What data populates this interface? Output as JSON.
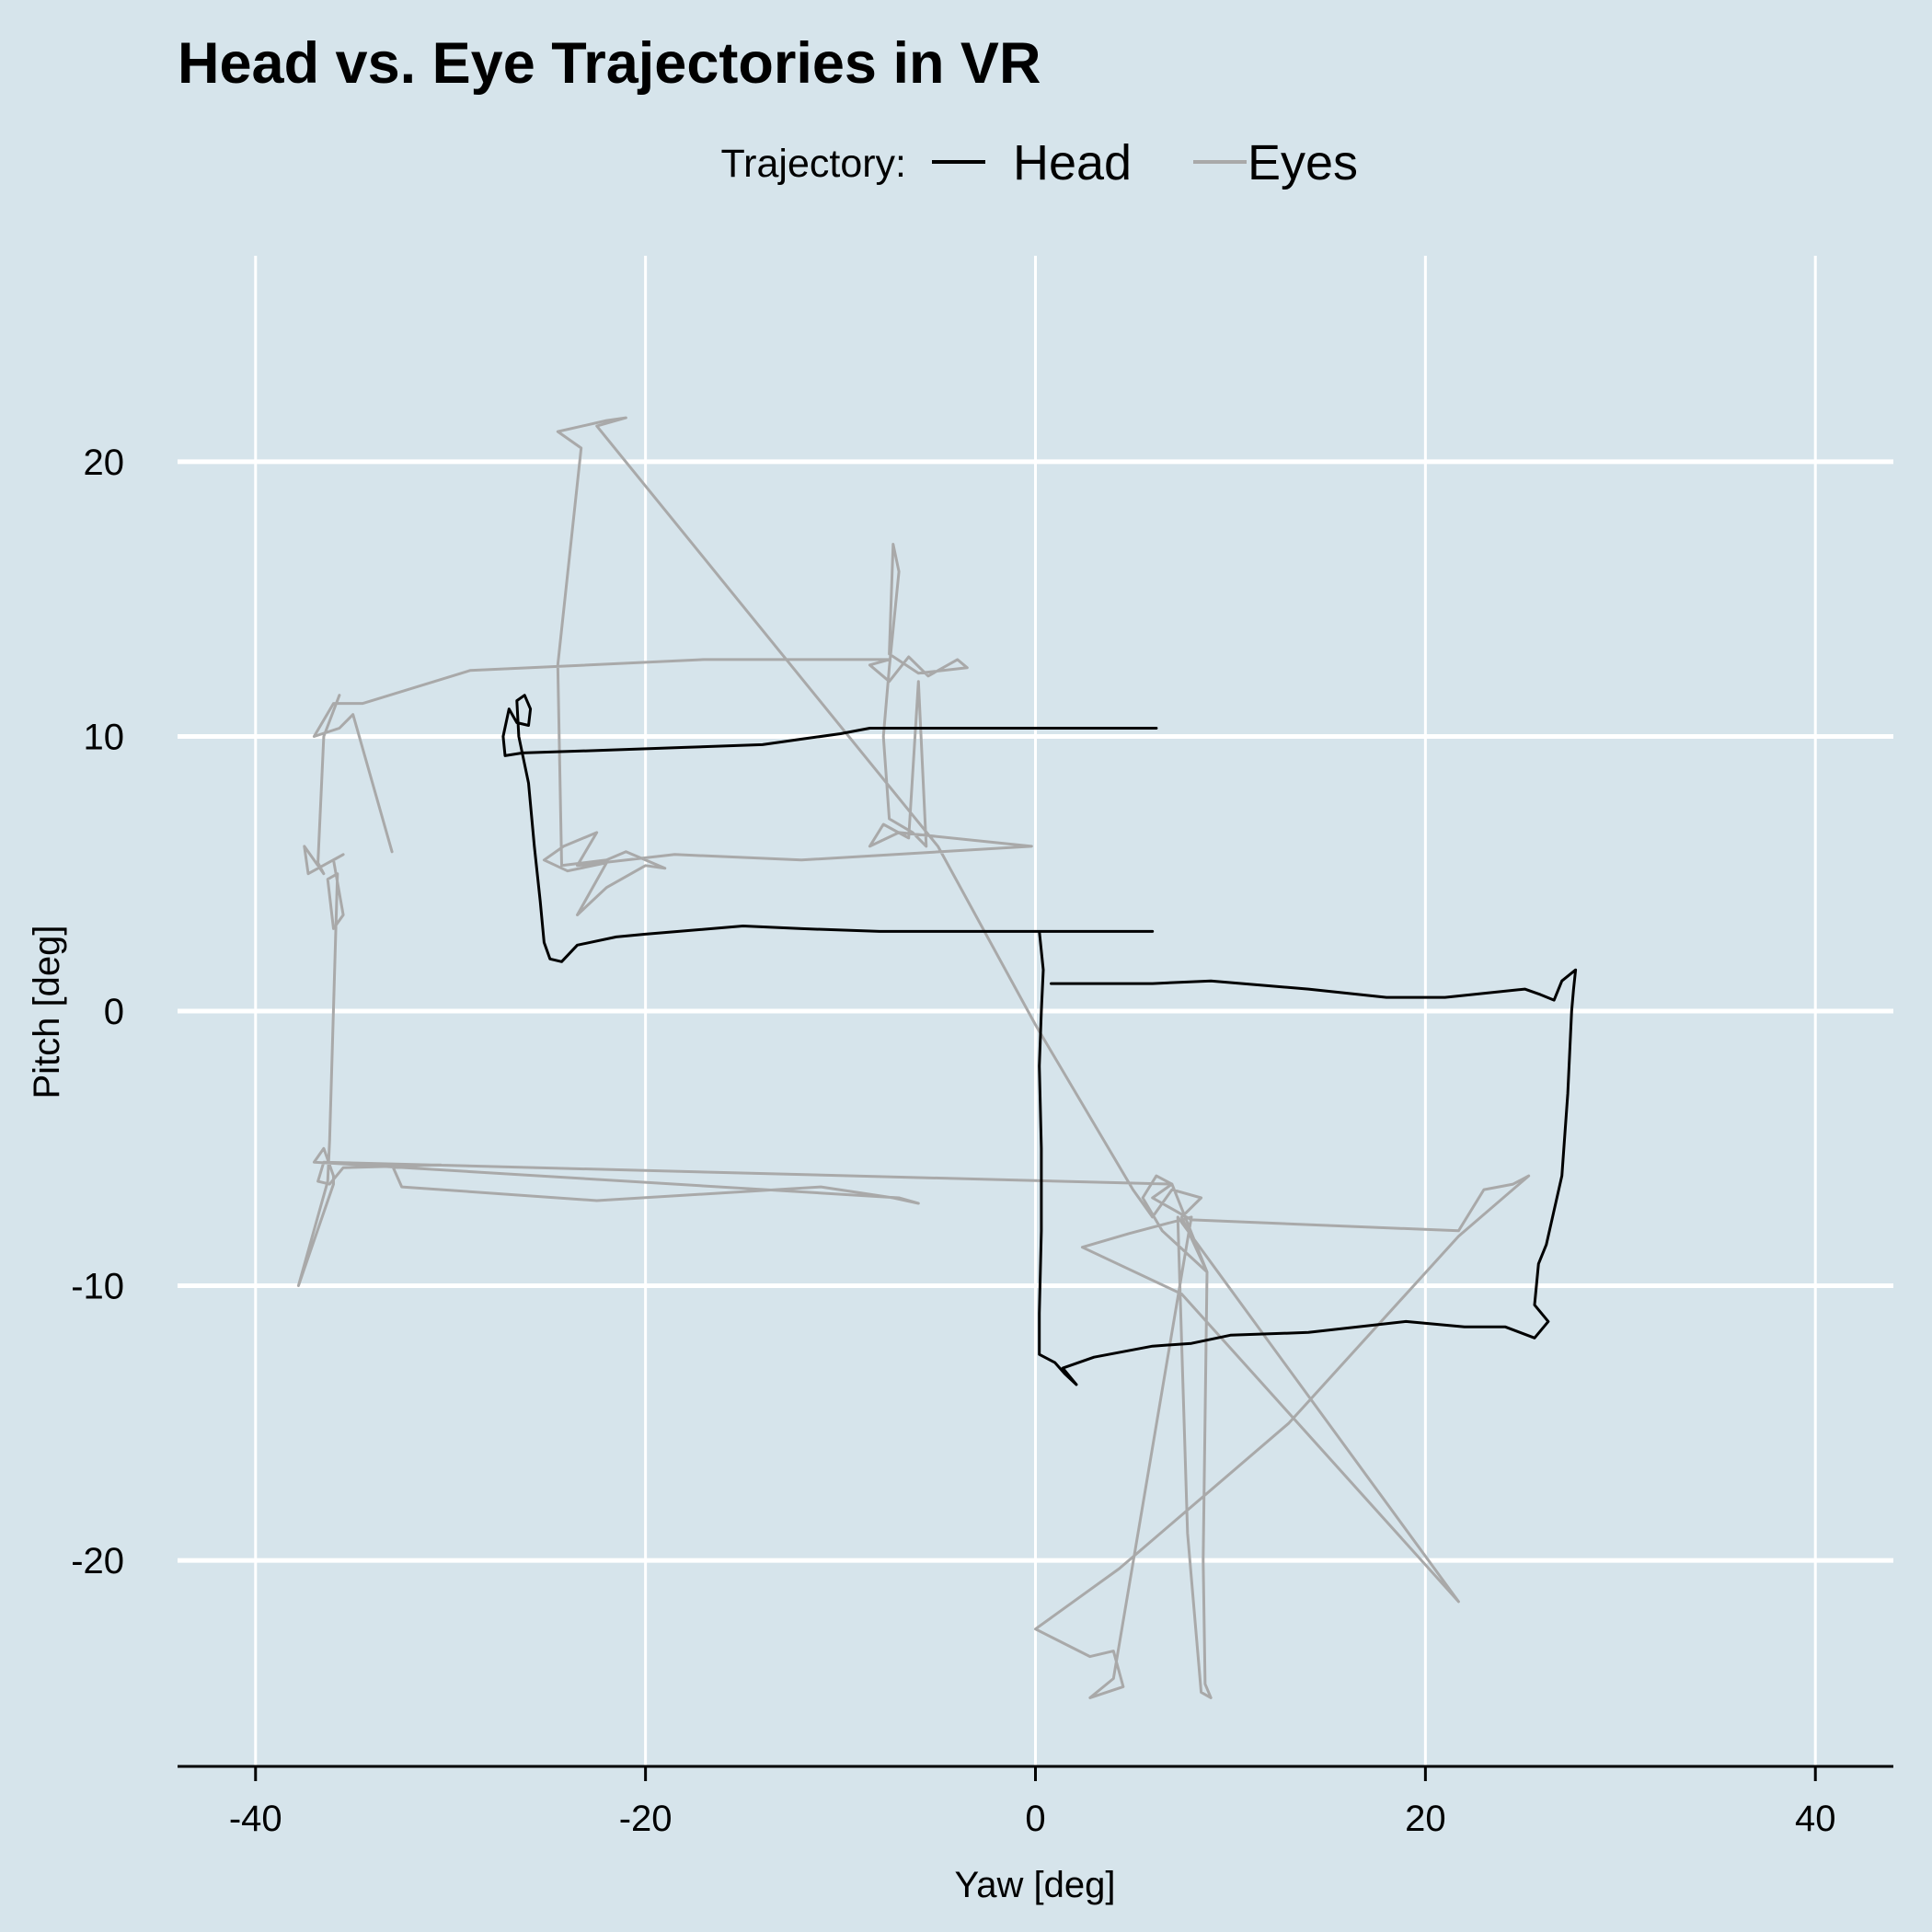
{
  "chart_data": {
    "type": "line",
    "title": "Head vs. Eye Trajectories in VR",
    "xlabel": "Yaw [deg]",
    "ylabel": "Pitch [deg]",
    "xlim": [
      -44,
      44
    ],
    "ylim": [
      -27.5,
      27.5
    ],
    "x_ticks": [
      -40,
      -20,
      0,
      20,
      40
    ],
    "y_ticks": [
      -20,
      -10,
      0,
      10,
      20
    ],
    "x_tick_labels": [
      "-40",
      "-20",
      "0",
      "20",
      "40"
    ],
    "y_tick_labels": [
      "-20",
      "-10",
      "0",
      "10",
      "20"
    ],
    "grid": true,
    "legend": {
      "title": "Trajectory:",
      "position": "top"
    },
    "series": [
      {
        "name": "Head",
        "color": "#000000",
        "points": [
          [
            6.2,
            10.3
          ],
          [
            0,
            10.3
          ],
          [
            -8.5,
            10.3
          ],
          [
            -10,
            10.1
          ],
          [
            -12,
            9.9
          ],
          [
            -14,
            9.7
          ],
          [
            -18,
            9.6
          ],
          [
            -22,
            9.5
          ],
          [
            -26.3,
            9.4
          ],
          [
            -27.2,
            9.3
          ],
          [
            -27.3,
            10.0
          ],
          [
            -27.0,
            11.0
          ],
          [
            -26.6,
            10.5
          ],
          [
            -26.0,
            10.4
          ],
          [
            -25.9,
            11.0
          ],
          [
            -26.2,
            11.5
          ],
          [
            -26.6,
            11.3
          ],
          [
            -26.5,
            10.0
          ],
          [
            -26.0,
            8.3
          ],
          [
            -25.7,
            6.0
          ],
          [
            -25.4,
            4.0
          ],
          [
            -25.2,
            2.5
          ],
          [
            -24.9,
            1.9
          ],
          [
            -24.3,
            1.8
          ],
          [
            -23.5,
            2.4
          ],
          [
            -21.5,
            2.7
          ],
          [
            -20,
            2.8
          ],
          [
            -15,
            3.1
          ],
          [
            -12,
            3.0
          ],
          [
            -8,
            2.9
          ],
          [
            -5,
            2.9
          ],
          [
            6.0,
            2.9
          ],
          [
            0.2,
            2.9
          ],
          [
            0.4,
            1.5
          ],
          [
            0.3,
            0
          ],
          [
            0.2,
            -2
          ],
          [
            0.3,
            -5
          ],
          [
            0.3,
            -8
          ],
          [
            0.2,
            -11
          ],
          [
            0.2,
            -12.5
          ],
          [
            1.0,
            -12.8
          ],
          [
            1.5,
            -13.2
          ],
          [
            2.1,
            -13.6
          ],
          [
            1.4,
            -13.0
          ],
          [
            3.0,
            -12.6
          ],
          [
            6,
            -12.2
          ],
          [
            8,
            -12.1
          ],
          [
            10,
            -11.8
          ],
          [
            14,
            -11.7
          ],
          [
            19,
            -11.3
          ],
          [
            22,
            -11.5
          ],
          [
            24.1,
            -11.5
          ],
          [
            25.6,
            -11.9
          ],
          [
            26.3,
            -11.3
          ],
          [
            25.6,
            -10.7
          ],
          [
            25.8,
            -9.2
          ],
          [
            26.2,
            -8.5
          ],
          [
            27.0,
            -6.0
          ],
          [
            27.3,
            -3.0
          ],
          [
            27.5,
            0
          ],
          [
            27.6,
            0.8
          ],
          [
            27.7,
            1.5
          ],
          [
            27.0,
            1.1
          ],
          [
            26.6,
            0.4
          ],
          [
            25.9,
            0.6
          ],
          [
            25.1,
            0.8
          ],
          [
            21,
            0.5
          ],
          [
            18,
            0.5
          ],
          [
            14,
            0.8
          ],
          [
            9,
            1.1
          ],
          [
            6,
            1.0
          ],
          [
            3,
            1.0
          ],
          [
            0.8,
            1.0
          ]
        ]
      },
      {
        "name": "Eyes",
        "color": "#a9a9a9",
        "points": [
          [
            -33,
            5.8
          ],
          [
            -35,
            10.8
          ],
          [
            -35.7,
            10.3
          ],
          [
            -37,
            10.0
          ],
          [
            -36,
            11.2
          ],
          [
            -34.5,
            11.2
          ],
          [
            -29,
            12.4
          ],
          [
            -17,
            12.8
          ],
          [
            -7.5,
            12.8
          ],
          [
            -8.5,
            12.6
          ],
          [
            -7.5,
            12.0
          ],
          [
            -6.5,
            12.9
          ],
          [
            -5.5,
            12.2
          ],
          [
            -4,
            12.8
          ],
          [
            -3.5,
            12.5
          ],
          [
            -6.0,
            12.3
          ],
          [
            -7.5,
            13.0
          ],
          [
            -7.3,
            17.0
          ],
          [
            -7.0,
            16.0
          ],
          [
            -7.5,
            12.5
          ],
          [
            -7.8,
            10.0
          ],
          [
            -7.5,
            7.0
          ],
          [
            -6.3,
            6.5
          ],
          [
            -5.6,
            6.0
          ],
          [
            -6.0,
            12.0
          ],
          [
            -6.5,
            6.3
          ],
          [
            -7.8,
            6.8
          ],
          [
            -8.5,
            6.0
          ],
          [
            -7.0,
            6.5
          ],
          [
            -0.2,
            6.0
          ],
          [
            -12,
            5.5
          ],
          [
            -18.5,
            5.7
          ],
          [
            -23.5,
            5.3
          ],
          [
            -22.5,
            6.5
          ],
          [
            -24.2,
            6.0
          ],
          [
            -25.2,
            5.5
          ],
          [
            -24,
            5.1
          ],
          [
            -22,
            5.4
          ],
          [
            -23.5,
            3.5
          ],
          [
            -22,
            4.5
          ],
          [
            -20,
            5.3
          ],
          [
            -19,
            5.2
          ],
          [
            -21,
            5.8
          ],
          [
            -22,
            5.5
          ],
          [
            -24.3,
            5.3
          ],
          [
            -24.5,
            12.6
          ],
          [
            -23.3,
            20.5
          ],
          [
            -24.5,
            21.1
          ],
          [
            -22,
            21.5
          ],
          [
            -21,
            21.6
          ],
          [
            -22.5,
            21.3
          ],
          [
            -5.0,
            6.0
          ],
          [
            0,
            -0.5
          ],
          [
            5,
            -6.5
          ],
          [
            6,
            -7.5
          ],
          [
            7,
            -6.5
          ],
          [
            8.5,
            -6.8
          ],
          [
            7.5,
            -7.5
          ],
          [
            8.8,
            -9.5
          ],
          [
            7,
            -6.3
          ],
          [
            6.0,
            -6.8
          ],
          [
            8.0,
            -7.6
          ],
          [
            21.7,
            -8.0
          ],
          [
            23,
            -6.5
          ],
          [
            24.5,
            -6.3
          ],
          [
            25.3,
            -6.0
          ],
          [
            21.7,
            -8.2
          ],
          [
            13,
            -15
          ],
          [
            4.3,
            -20.3
          ],
          [
            0,
            -22.5
          ],
          [
            2.8,
            -23.5
          ],
          [
            4.0,
            -23.3
          ],
          [
            4.5,
            -24.6
          ],
          [
            2.8,
            -25.0
          ],
          [
            4.0,
            -24.3
          ],
          [
            8,
            -7.5
          ],
          [
            4.8,
            -8.1
          ],
          [
            2.4,
            -8.6
          ],
          [
            7.5,
            -10.3
          ],
          [
            21.7,
            -21.5
          ],
          [
            7.3,
            -7.5
          ],
          [
            7.8,
            -19.0
          ],
          [
            8.5,
            -24.8
          ],
          [
            9.0,
            -25.0
          ],
          [
            8.7,
            -24.5
          ],
          [
            8.6,
            -20.0
          ],
          [
            8.8,
            -9.5
          ],
          [
            6.5,
            -8.0
          ],
          [
            5.5,
            -6.8
          ],
          [
            6.2,
            -6.0
          ],
          [
            7,
            -6.3
          ],
          [
            -36.5,
            -5.5
          ],
          [
            -36.8,
            -6.2
          ],
          [
            -36.2,
            -6.3
          ],
          [
            -35.5,
            -5.7
          ],
          [
            -30.5,
            -5.6
          ],
          [
            -33,
            -5.6
          ],
          [
            -32.5,
            -6.4
          ],
          [
            -22.5,
            -6.9
          ],
          [
            -11,
            -6.4
          ],
          [
            -7.3,
            -6.8
          ],
          [
            -6,
            -7.0
          ],
          [
            -7,
            -6.8
          ],
          [
            -37,
            -5.5
          ],
          [
            -36.5,
            -5.0
          ],
          [
            -36.0,
            -6.0
          ],
          [
            -36.0,
            -6.3
          ],
          [
            -37.8,
            -10.0
          ],
          [
            -36.3,
            -6.2
          ],
          [
            -36.2,
            -4.7
          ],
          [
            -35.8,
            5.0
          ],
          [
            -36.3,
            4.8
          ],
          [
            -36.0,
            3.0
          ],
          [
            -35.5,
            3.5
          ],
          [
            -36.0,
            5.5
          ],
          [
            -35.5,
            5.7
          ],
          [
            -37.3,
            5.0
          ],
          [
            -37.5,
            6.0
          ],
          [
            -36.5,
            5.0
          ],
          [
            -36.8,
            5.4
          ],
          [
            -36.5,
            10.0
          ],
          [
            -35.7,
            11.5
          ]
        ]
      }
    ]
  }
}
